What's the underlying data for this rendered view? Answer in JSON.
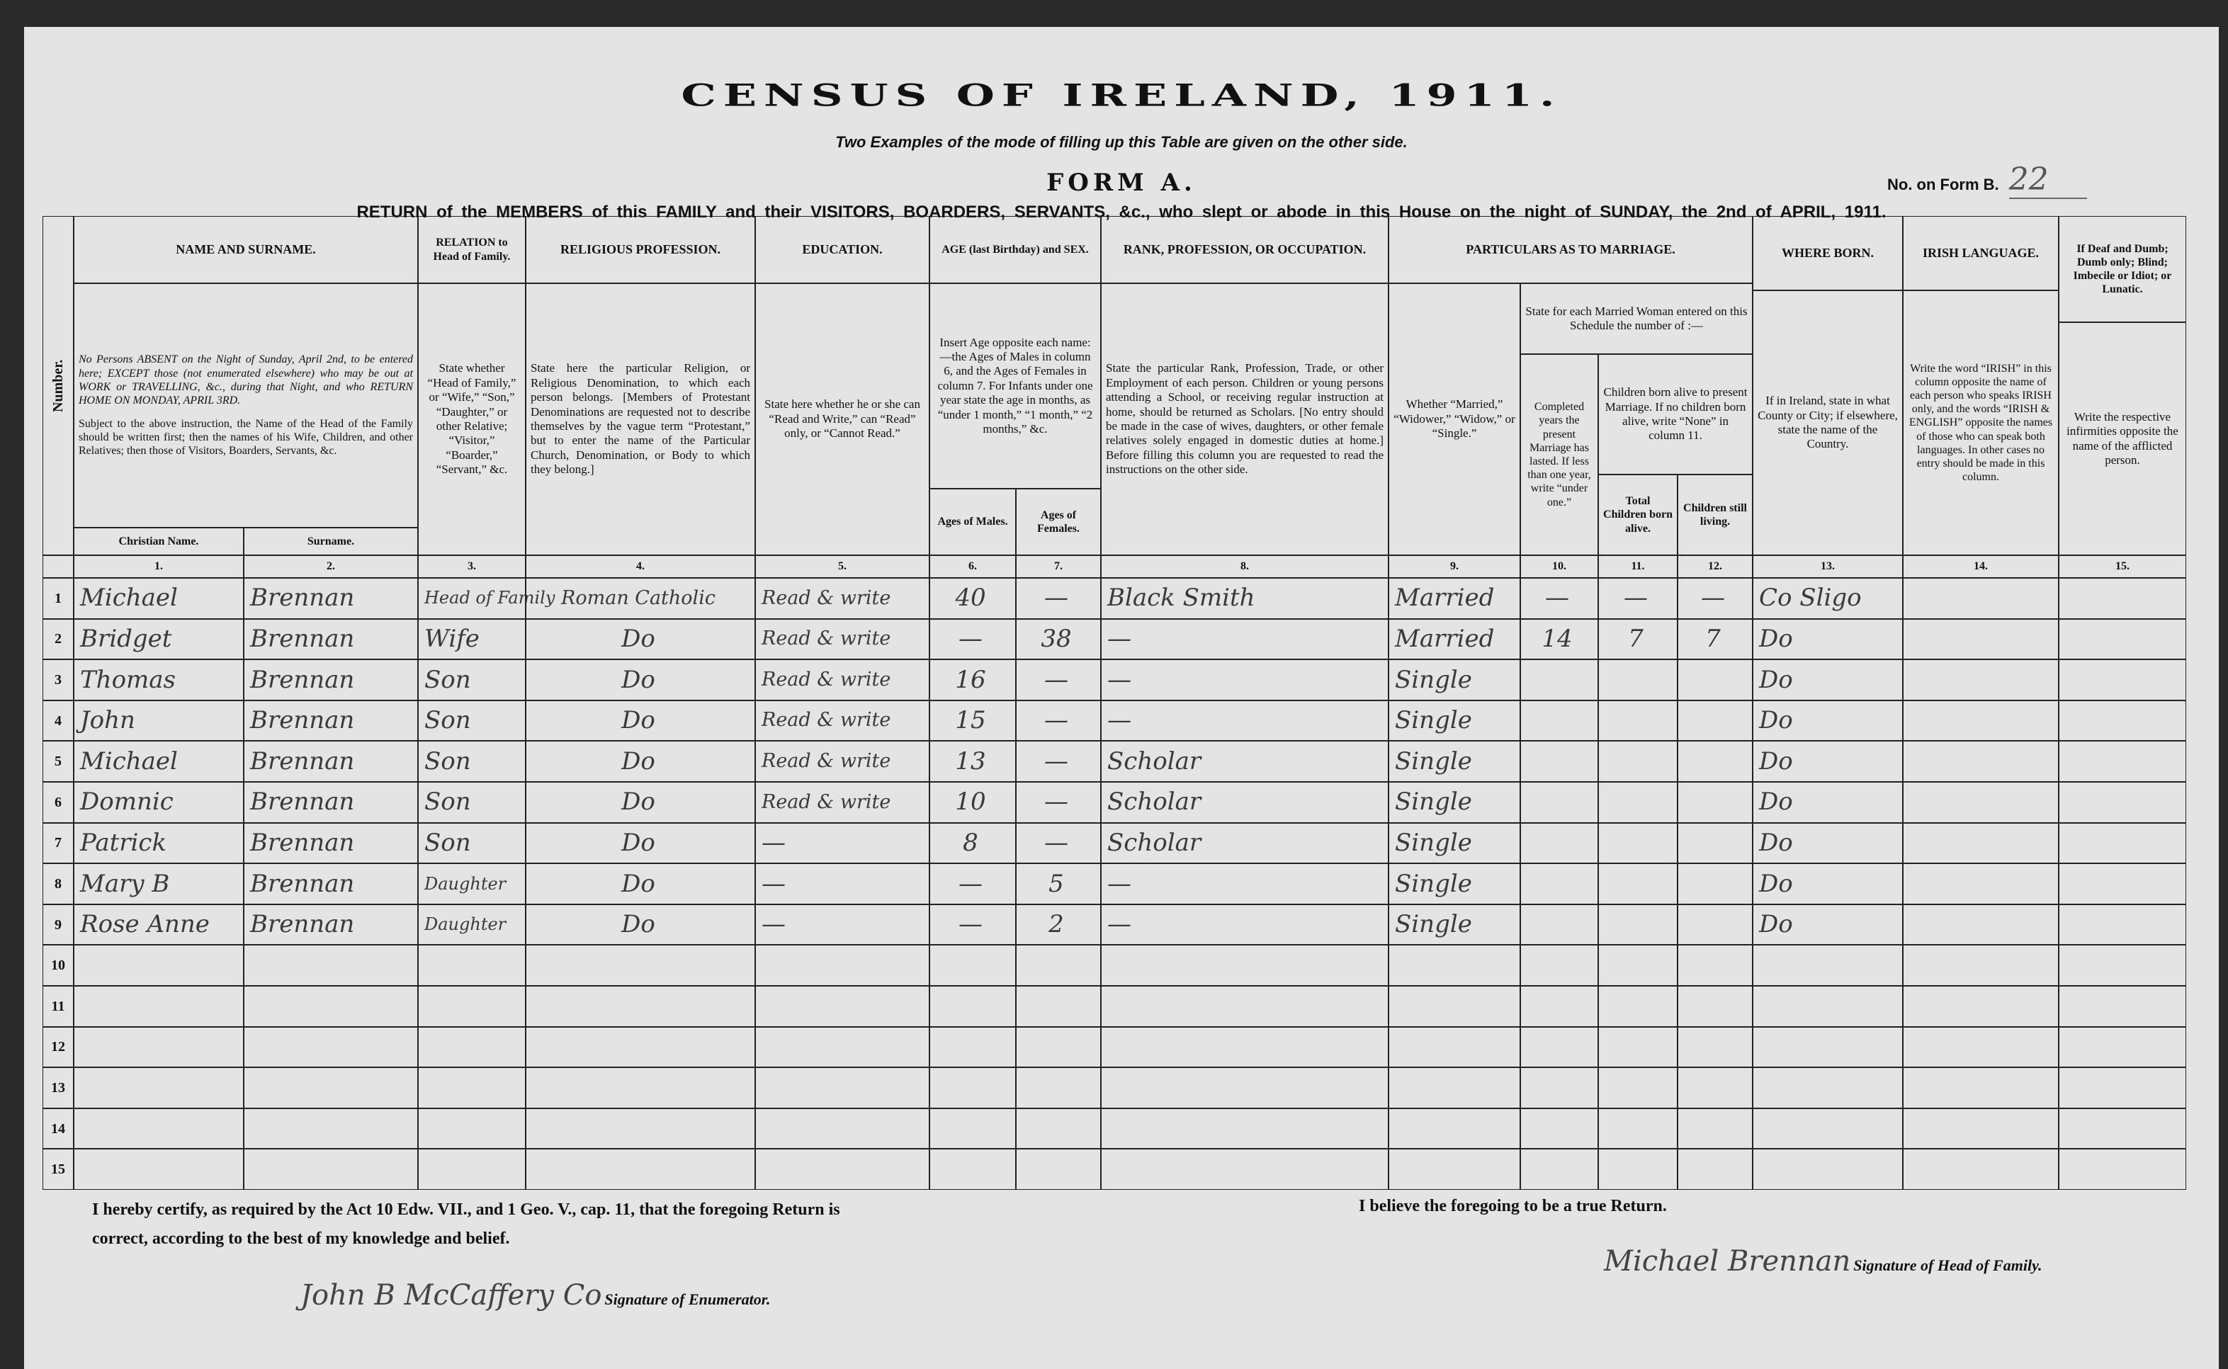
{
  "title": "CENSUS OF IRELAND, 1911.",
  "subtitle": "Two Examples of the mode of filling up this Table are given on the other side.",
  "form_name": "FORM A.",
  "form_b": {
    "label": "No. on Form B.",
    "value": "22"
  },
  "return_line": "RETURN of the MEMBERS of this FAMILY and their VISITORS, BOARDERS, SERVANTS, &c., who slept or abode in this House on the night of SUNDAY, the 2nd of APRIL, 1911.",
  "headers": {
    "number": "Number.",
    "name": "NAME AND SURNAME.",
    "name_instr1": "No Persons ABSENT on the Night of Sunday, April 2nd, to be entered here; EXCEPT those (not enumerated elsewhere) who may be out at WORK or TRAVELLING, &c., during that Night, and who RETURN HOME ON MONDAY, APRIL 3RD.",
    "name_instr2": "Subject to the above instruction, the Name of the Head of the Family should be written first; then the names of his Wife, Children, and other Relatives; then those of Visitors, Boarders, Servants, &c.",
    "christian": "Christian Name.",
    "surname": "Surname.",
    "relation": "RELATION to Head of Family.",
    "relation_instr": "State whether “Head of Family,” or “Wife,” “Son,” “Daughter,” or other Relative; “Visitor,” “Boarder,” “Servant,” &c.",
    "religion": "RELIGIOUS PROFESSION.",
    "religion_instr": "State here the particular Religion, or Religious Denomination, to which each person belongs. [Members of Protestant Denominations are requested not to describe themselves by the vague term “Protestant,” but to enter the name of the Particular Church, Denomination, or Body to which they belong.]",
    "education": "EDUCATION.",
    "education_instr": "State here whether he or she can “Read and Write,” can “Read” only, or “Cannot Read.”",
    "age": "AGE (last Birthday) and SEX.",
    "age_instr": "Insert Age opposite each name:—the Ages of Males in column 6, and the Ages of Females in column 7. For Infants under one year state the age in months, as “under 1 month,” “1 month,” “2 months,” &c.",
    "age_males": "Ages of Males.",
    "age_females": "Ages of Females.",
    "occupation": "RANK, PROFESSION, OR OCCUPATION.",
    "occupation_instr": "State the particular Rank, Profession, Trade, or other Employment of each person. Children or young persons attending a School, or receiving regular instruction at home, should be returned as Scholars. [No entry should be made in the case of wives, daughters, or other female relatives solely engaged in domestic duties at home.] Before filling this column you are requested to read the instructions on the other side.",
    "marriage": "PARTICULARS AS TO MARRIAGE.",
    "marriage_instr": "Whether “Married,” “Widower,” “Widow,” or “Single.”",
    "married_woman": "State for each Married Woman entered on this Schedule the number of :—",
    "years": "Completed years the present Marriage has lasted. If less than one year, write “under one.”",
    "children_alive": "Children born alive to present Marriage. If no children born alive, write “None” in column 11.",
    "total_children": "Total Children born alive.",
    "children_living": "Children still living.",
    "born": "WHERE BORN.",
    "born_instr": "If in Ireland, state in what County or City; if elsewhere, state the name of the Country.",
    "irish": "IRISH LANGUAGE.",
    "irish_instr": "Write the word “IRISH” in this column opposite the name of each person who speaks IRISH only, and the words “IRISH & ENGLISH” opposite the names of those who can speak both languages. In other cases no entry should be made in this column.",
    "infirm": "If Deaf and Dumb; Dumb only; Blind; Imbecile or Idiot; or Lunatic.",
    "infirm_instr": "Write the respective infirmities opposite the name of the afflicted person.",
    "col_numbers": [
      "1.",
      "2.",
      "3.",
      "4.",
      "5.",
      "6.",
      "7.",
      "8.",
      "9.",
      "10.",
      "11.",
      "12.",
      "13.",
      "14.",
      "15."
    ]
  },
  "rows": [
    {
      "n": "1",
      "christian": "Michael",
      "surname": "Brennan",
      "relation": "Head of Family",
      "religion": "Roman Catholic",
      "education": "Read & write",
      "age_m": "40",
      "age_f": "—",
      "occupation": "Black Smith",
      "marriage": "Married",
      "years": "—",
      "total": "—",
      "living": "—",
      "born": "Co Sligo",
      "irish": "",
      "infirm": ""
    },
    {
      "n": "2",
      "christian": "Bridget",
      "surname": "Brennan",
      "relation": "Wife",
      "religion": "Do",
      "education": "Read & write",
      "age_m": "—",
      "age_f": "38",
      "occupation": "—",
      "marriage": "Married",
      "years": "14",
      "total": "7",
      "living": "7",
      "born": "Do",
      "irish": "",
      "infirm": ""
    },
    {
      "n": "3",
      "christian": "Thomas",
      "surname": "Brennan",
      "relation": "Son",
      "religion": "Do",
      "education": "Read & write",
      "age_m": "16",
      "age_f": "—",
      "occupation": "—",
      "marriage": "Single",
      "years": "",
      "total": "",
      "living": "",
      "born": "Do",
      "irish": "",
      "infirm": ""
    },
    {
      "n": "4",
      "christian": "John",
      "surname": "Brennan",
      "relation": "Son",
      "religion": "Do",
      "education": "Read & write",
      "age_m": "15",
      "age_f": "—",
      "occupation": "—",
      "marriage": "Single",
      "years": "",
      "total": "",
      "living": "",
      "born": "Do",
      "irish": "",
      "infirm": ""
    },
    {
      "n": "5",
      "christian": "Michael",
      "surname": "Brennan",
      "relation": "Son",
      "religion": "Do",
      "education": "Read & write",
      "age_m": "13",
      "age_f": "—",
      "occupation": "Scholar",
      "marriage": "Single",
      "years": "",
      "total": "",
      "living": "",
      "born": "Do",
      "irish": "",
      "infirm": ""
    },
    {
      "n": "6",
      "christian": "Domnic",
      "surname": "Brennan",
      "relation": "Son",
      "religion": "Do",
      "education": "Read & write",
      "age_m": "10",
      "age_f": "—",
      "occupation": "Scholar",
      "marriage": "Single",
      "years": "",
      "total": "",
      "living": "",
      "born": "Do",
      "irish": "",
      "infirm": ""
    },
    {
      "n": "7",
      "christian": "Patrick",
      "surname": "Brennan",
      "relation": "Son",
      "religion": "Do",
      "education": "—",
      "age_m": "8",
      "age_f": "—",
      "occupation": "Scholar",
      "marriage": "Single",
      "years": "",
      "total": "",
      "living": "",
      "born": "Do",
      "irish": "",
      "infirm": ""
    },
    {
      "n": "8",
      "christian": "Mary B",
      "surname": "Brennan",
      "relation": "Daughter",
      "religion": "Do",
      "education": "—",
      "age_m": "—",
      "age_f": "5",
      "occupation": "—",
      "marriage": "Single",
      "years": "",
      "total": "",
      "living": "",
      "born": "Do",
      "irish": "",
      "infirm": ""
    },
    {
      "n": "9",
      "christian": "Rose Anne",
      "surname": "Brennan",
      "relation": "Daughter",
      "religion": "Do",
      "education": "—",
      "age_m": "—",
      "age_f": "2",
      "occupation": "—",
      "marriage": "Single",
      "years": "",
      "total": "",
      "living": "",
      "born": "Do",
      "irish": "",
      "infirm": ""
    },
    {
      "n": "10"
    },
    {
      "n": "11"
    },
    {
      "n": "12"
    },
    {
      "n": "13"
    },
    {
      "n": "14"
    },
    {
      "n": "15"
    }
  ],
  "footer": {
    "certify": "I hereby certify, as required by the Act 10 Edw. VII., and 1 Geo. V., cap. 11, that the foregoing Return is correct, according to the best of my knowledge and belief.",
    "enumerator_signature": "John B McCaffery Co",
    "enumerator_label": "Signature of Enumerator.",
    "believe": "I believe the foregoing to be a true Return.",
    "head_signature": "Michael Brennan",
    "head_label": "Signature of Head of Family."
  }
}
